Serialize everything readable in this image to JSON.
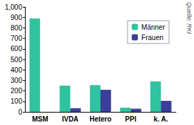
{
  "chart_data": {
    "type": "bar",
    "categories": [
      "MSM",
      "IVDA",
      "Hetero",
      "PPI",
      "k. A."
    ],
    "series": [
      {
        "name": "Männer",
        "color": "#2fc39f",
        "values": [
          890,
          250,
          255,
          40,
          290
        ]
      },
      {
        "name": "Frauen",
        "color": "#3b3f9c",
        "values": [
          0,
          35,
          210,
          30,
          105
        ]
      }
    ],
    "ylim": [
      0,
      1000
    ],
    "yticks": [
      0,
      100,
      200,
      300,
      400,
      500,
      600,
      700,
      800,
      900,
      1000
    ],
    "grid": false,
    "legend": "upper right",
    "annotations": [
      "Quelle: RKI"
    ]
  }
}
